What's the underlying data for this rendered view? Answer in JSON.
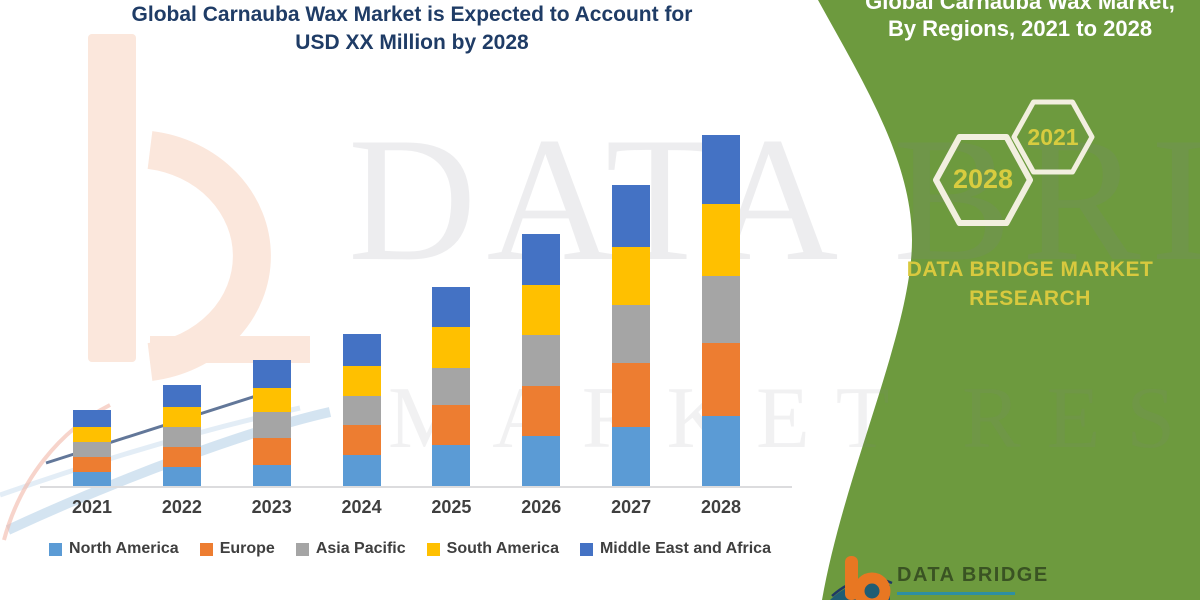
{
  "title": {
    "line1": "Global Carnauba Wax Market is Expected to Account for",
    "line2": "USD XX Million by 2028",
    "color": "#1F3C66"
  },
  "watermark": {
    "line1": "DATA BRIDGE",
    "line2": "MARKET RESEARCH"
  },
  "side_panel": {
    "heading_line1": "Global Carnauba Wax Market,",
    "heading_line2": "By Regions, 2021 to 2028",
    "hexagons": [
      {
        "label": "2028"
      },
      {
        "label": "2021"
      }
    ],
    "brand_line1": "DATA BRIDGE MARKET",
    "brand_line2": "RESEARCH",
    "bg_color": "#6D9A3E",
    "accent_text_color": "#D8CC3F"
  },
  "footer_logo": {
    "brand": "DATA BRIDGE",
    "b_color": "#E87722",
    "text_color": "#3A5323",
    "underline_color": "#2E8FA3"
  },
  "chart_data": {
    "type": "bar",
    "stacked": true,
    "title": "Global Carnauba Wax Market is Expected to Account for USD XX Million by 2028",
    "categories": [
      "2021",
      "2022",
      "2023",
      "2024",
      "2025",
      "2026",
      "2027",
      "2028"
    ],
    "series": [
      {
        "name": "North America",
        "color": "#5B9BD5",
        "values": [
          15,
          20,
          22,
          32,
          42,
          51,
          60,
          71
        ]
      },
      {
        "name": "Europe",
        "color": "#ED7D31",
        "values": [
          15,
          20,
          27,
          30,
          40,
          50,
          64,
          73
        ]
      },
      {
        "name": "Asia Pacific",
        "color": "#A5A5A5",
        "values": [
          15,
          20,
          26,
          29,
          37,
          51,
          58,
          67
        ]
      },
      {
        "name": "South America",
        "color": "#FFC000",
        "values": [
          15,
          20,
          24,
          30,
          41,
          50,
          58,
          72
        ]
      },
      {
        "name": "Middle East and Africa",
        "color": "#4472C4",
        "values": [
          17,
          22,
          28,
          32,
          40,
          51,
          62,
          69
        ]
      }
    ],
    "totals_estimated": [
      77,
      102,
      127,
      153,
      200,
      253,
      302,
      352
    ],
    "value_axis_shown": false,
    "value_unit": "relative units (actual values undisclosed, shown as USD XX Million)",
    "xlabel": "",
    "ylabel": "",
    "ylim": [
      0,
      380
    ],
    "grid": false,
    "legend_position": "bottom"
  }
}
